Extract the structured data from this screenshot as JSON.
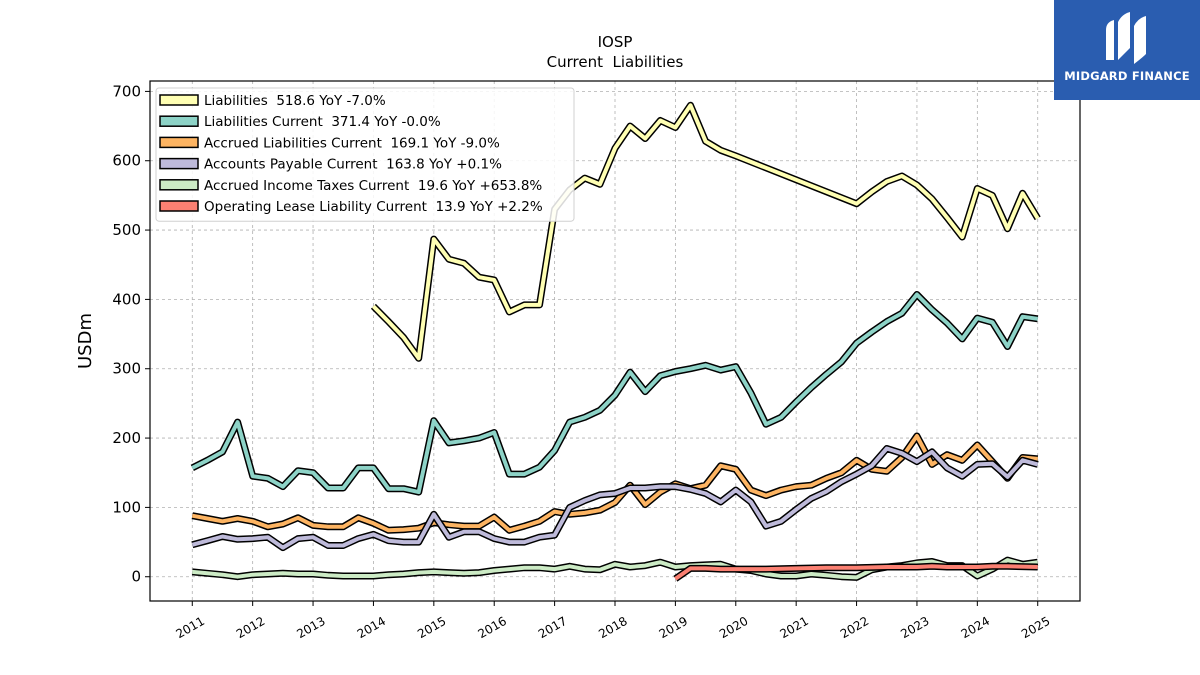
{
  "brand": {
    "name": "MIDGARD FINANCE",
    "bg": "#2a5db0"
  },
  "chart_data": {
    "type": "line",
    "title": "IOSP",
    "subtitle": "Current  Liabilities",
    "ylabel": "USDm",
    "xlabel": "",
    "ylim": [
      -35,
      715
    ],
    "xlim": [
      2010.3,
      2025.7
    ],
    "yticks": [
      0,
      100,
      200,
      300,
      400,
      500,
      600,
      700
    ],
    "xticks": [
      "2011",
      "2012",
      "2013",
      "2014",
      "2015",
      "2016",
      "2017",
      "2018",
      "2019",
      "2020",
      "2021",
      "2022",
      "2023",
      "2024",
      "2025"
    ],
    "grid": true,
    "legend_position": "top-left",
    "series": [
      {
        "name": "Liabilities  518.6 YoY -7.0%",
        "color": "#ffffb3",
        "points": [
          [
            2014.0,
            390
          ],
          [
            2014.25,
            368
          ],
          [
            2014.5,
            345
          ],
          [
            2014.75,
            315
          ],
          [
            2015.0,
            487
          ],
          [
            2015.25,
            458
          ],
          [
            2015.5,
            452
          ],
          [
            2015.75,
            432
          ],
          [
            2016.0,
            428
          ],
          [
            2016.25,
            382
          ],
          [
            2016.5,
            392
          ],
          [
            2016.75,
            392
          ],
          [
            2017.0,
            530
          ],
          [
            2017.25,
            558
          ],
          [
            2017.5,
            575
          ],
          [
            2017.75,
            566
          ],
          [
            2018.0,
            618
          ],
          [
            2018.25,
            650
          ],
          [
            2018.5,
            632
          ],
          [
            2018.75,
            658
          ],
          [
            2019.0,
            648
          ],
          [
            2019.25,
            680
          ],
          [
            2019.5,
            628
          ],
          [
            2019.75,
            615
          ],
          [
            2020.0,
            607
          ],
          [
            2022.0,
            538
          ],
          [
            2022.25,
            555
          ],
          [
            2022.5,
            570
          ],
          [
            2022.75,
            578
          ],
          [
            2023.0,
            565
          ],
          [
            2023.25,
            545
          ],
          [
            2023.5,
            518
          ],
          [
            2023.75,
            490
          ],
          [
            2024.0,
            560
          ],
          [
            2024.25,
            550
          ],
          [
            2024.5,
            502
          ],
          [
            2024.75,
            553
          ],
          [
            2025.0,
            517
          ]
        ]
      },
      {
        "name": "Liabilities Current  371.4 YoY -0.0%",
        "color": "#8dd3c7",
        "points": [
          [
            2011.0,
            157
          ],
          [
            2011.25,
            168
          ],
          [
            2011.5,
            180
          ],
          [
            2011.75,
            223
          ],
          [
            2012.0,
            145
          ],
          [
            2012.25,
            142
          ],
          [
            2012.5,
            130
          ],
          [
            2012.75,
            153
          ],
          [
            2013.0,
            150
          ],
          [
            2013.25,
            128
          ],
          [
            2013.5,
            128
          ],
          [
            2013.75,
            157
          ],
          [
            2014.0,
            157
          ],
          [
            2014.25,
            127
          ],
          [
            2014.5,
            127
          ],
          [
            2014.75,
            122
          ],
          [
            2015.0,
            225
          ],
          [
            2015.25,
            193
          ],
          [
            2015.5,
            196
          ],
          [
            2015.75,
            200
          ],
          [
            2016.0,
            208
          ],
          [
            2016.25,
            148
          ],
          [
            2016.5,
            148
          ],
          [
            2016.75,
            158
          ],
          [
            2017.0,
            182
          ],
          [
            2017.25,
            223
          ],
          [
            2017.5,
            230
          ],
          [
            2017.75,
            240
          ],
          [
            2018.0,
            262
          ],
          [
            2018.25,
            295
          ],
          [
            2018.5,
            267
          ],
          [
            2018.75,
            290
          ],
          [
            2019.0,
            296
          ],
          [
            2019.25,
            300
          ],
          [
            2019.5,
            305
          ],
          [
            2019.75,
            298
          ],
          [
            2020.0,
            303
          ],
          [
            2020.25,
            265
          ],
          [
            2020.5,
            220
          ],
          [
            2020.75,
            230
          ],
          [
            2021.0,
            252
          ],
          [
            2021.25,
            273
          ],
          [
            2021.5,
            292
          ],
          [
            2021.75,
            310
          ],
          [
            2022.0,
            337
          ],
          [
            2022.25,
            353
          ],
          [
            2022.5,
            368
          ],
          [
            2022.75,
            380
          ],
          [
            2023.0,
            407
          ],
          [
            2023.25,
            385
          ],
          [
            2023.5,
            366
          ],
          [
            2023.75,
            343
          ],
          [
            2024.0,
            373
          ],
          [
            2024.25,
            367
          ],
          [
            2024.5,
            332
          ],
          [
            2024.75,
            375
          ],
          [
            2025.0,
            372
          ]
        ]
      },
      {
        "name": "Accrued Liabilities Current  169.1 YoY -9.0%",
        "color": "#fdb462",
        "points": [
          [
            2011.0,
            88
          ],
          [
            2011.25,
            84
          ],
          [
            2011.5,
            80
          ],
          [
            2011.75,
            84
          ],
          [
            2012.0,
            80
          ],
          [
            2012.25,
            72
          ],
          [
            2012.5,
            76
          ],
          [
            2012.75,
            85
          ],
          [
            2013.0,
            74
          ],
          [
            2013.25,
            72
          ],
          [
            2013.5,
            72
          ],
          [
            2013.75,
            85
          ],
          [
            2014.0,
            77
          ],
          [
            2014.25,
            67
          ],
          [
            2014.5,
            68
          ],
          [
            2014.75,
            70
          ],
          [
            2015.0,
            78
          ],
          [
            2015.25,
            75
          ],
          [
            2015.5,
            73
          ],
          [
            2015.75,
            73
          ],
          [
            2016.0,
            86
          ],
          [
            2016.25,
            67
          ],
          [
            2016.5,
            73
          ],
          [
            2016.75,
            80
          ],
          [
            2017.0,
            94
          ],
          [
            2017.25,
            90
          ],
          [
            2017.5,
            92
          ],
          [
            2017.75,
            96
          ],
          [
            2018.0,
            107
          ],
          [
            2018.25,
            132
          ],
          [
            2018.5,
            104
          ],
          [
            2018.75,
            122
          ],
          [
            2019.0,
            134
          ],
          [
            2019.25,
            127
          ],
          [
            2019.5,
            132
          ],
          [
            2019.75,
            160
          ],
          [
            2020.0,
            155
          ],
          [
            2020.25,
            125
          ],
          [
            2020.5,
            117
          ],
          [
            2020.75,
            125
          ],
          [
            2021.0,
            130
          ],
          [
            2021.25,
            132
          ],
          [
            2021.5,
            142
          ],
          [
            2021.75,
            150
          ],
          [
            2022.0,
            168
          ],
          [
            2022.25,
            155
          ],
          [
            2022.5,
            152
          ],
          [
            2022.75,
            172
          ],
          [
            2023.0,
            203
          ],
          [
            2023.25,
            162
          ],
          [
            2023.5,
            176
          ],
          [
            2023.75,
            168
          ],
          [
            2024.0,
            190
          ],
          [
            2024.25,
            166
          ],
          [
            2024.5,
            142
          ],
          [
            2024.75,
            172
          ],
          [
            2025.0,
            170
          ]
        ]
      },
      {
        "name": "Accounts Payable Current  163.8 YoY +0.1%",
        "color": "#bebada",
        "points": [
          [
            2011.0,
            46
          ],
          [
            2011.25,
            52
          ],
          [
            2011.5,
            58
          ],
          [
            2011.75,
            54
          ],
          [
            2012.0,
            55
          ],
          [
            2012.25,
            57
          ],
          [
            2012.5,
            42
          ],
          [
            2012.75,
            55
          ],
          [
            2013.0,
            57
          ],
          [
            2013.25,
            45
          ],
          [
            2013.5,
            45
          ],
          [
            2013.75,
            55
          ],
          [
            2014.0,
            61
          ],
          [
            2014.25,
            52
          ],
          [
            2014.5,
            50
          ],
          [
            2014.75,
            50
          ],
          [
            2015.0,
            90
          ],
          [
            2015.25,
            57
          ],
          [
            2015.5,
            65
          ],
          [
            2015.75,
            65
          ],
          [
            2016.0,
            55
          ],
          [
            2016.25,
            50
          ],
          [
            2016.5,
            50
          ],
          [
            2016.75,
            57
          ],
          [
            2017.0,
            60
          ],
          [
            2017.25,
            100
          ],
          [
            2017.5,
            110
          ],
          [
            2017.75,
            118
          ],
          [
            2018.0,
            120
          ],
          [
            2018.25,
            128
          ],
          [
            2018.5,
            128
          ],
          [
            2018.75,
            130
          ],
          [
            2019.0,
            130
          ],
          [
            2019.25,
            126
          ],
          [
            2019.5,
            120
          ],
          [
            2019.75,
            108
          ],
          [
            2020.0,
            125
          ],
          [
            2020.25,
            108
          ],
          [
            2020.5,
            73
          ],
          [
            2020.75,
            80
          ],
          [
            2021.0,
            97
          ],
          [
            2021.25,
            113
          ],
          [
            2021.5,
            123
          ],
          [
            2021.75,
            137
          ],
          [
            2022.0,
            148
          ],
          [
            2022.25,
            160
          ],
          [
            2022.5,
            185
          ],
          [
            2022.75,
            178
          ],
          [
            2023.0,
            166
          ],
          [
            2023.25,
            180
          ],
          [
            2023.5,
            157
          ],
          [
            2023.75,
            145
          ],
          [
            2024.0,
            162
          ],
          [
            2024.25,
            163
          ],
          [
            2024.5,
            144
          ],
          [
            2024.75,
            168
          ],
          [
            2025.0,
            162
          ]
        ]
      },
      {
        "name": "Accrued Income Taxes Current  19.6 YoY +653.8%",
        "color": "#ccebc5",
        "points": [
          [
            2011.0,
            7
          ],
          [
            2011.25,
            5
          ],
          [
            2011.5,
            3
          ],
          [
            2011.75,
            0
          ],
          [
            2012.0,
            3
          ],
          [
            2012.25,
            4
          ],
          [
            2012.5,
            5
          ],
          [
            2012.75,
            4
          ],
          [
            2013.0,
            4
          ],
          [
            2013.25,
            2
          ],
          [
            2013.5,
            1
          ],
          [
            2013.75,
            1
          ],
          [
            2014.0,
            1
          ],
          [
            2014.25,
            3
          ],
          [
            2014.5,
            4
          ],
          [
            2014.75,
            6
          ],
          [
            2015.0,
            7
          ],
          [
            2015.25,
            6
          ],
          [
            2015.5,
            5
          ],
          [
            2015.75,
            6
          ],
          [
            2016.0,
            9
          ],
          [
            2016.25,
            11
          ],
          [
            2016.5,
            13
          ],
          [
            2016.75,
            13
          ],
          [
            2017.0,
            11
          ],
          [
            2017.25,
            15
          ],
          [
            2017.5,
            11
          ],
          [
            2017.75,
            10
          ],
          [
            2018.0,
            18
          ],
          [
            2018.25,
            14
          ],
          [
            2018.5,
            16
          ],
          [
            2018.75,
            21
          ],
          [
            2019.0,
            14
          ],
          [
            2019.25,
            16
          ],
          [
            2019.5,
            17
          ],
          [
            2019.75,
            18
          ],
          [
            2020.0,
            11
          ],
          [
            2020.25,
            9
          ],
          [
            2020.5,
            4
          ],
          [
            2020.75,
            1
          ],
          [
            2021.0,
            1
          ],
          [
            2021.25,
            4
          ],
          [
            2021.5,
            2
          ],
          [
            2021.75,
            0
          ],
          [
            2022.0,
            -1
          ],
          [
            2022.25,
            10
          ],
          [
            2022.5,
            14
          ],
          [
            2022.75,
            16
          ],
          [
            2023.0,
            20
          ],
          [
            2023.25,
            22
          ],
          [
            2023.5,
            16
          ],
          [
            2023.75,
            16
          ],
          [
            2024.0,
            1
          ],
          [
            2024.25,
            11
          ],
          [
            2024.5,
            24
          ],
          [
            2024.75,
            18
          ],
          [
            2025.0,
            21
          ]
        ]
      },
      {
        "name": "Operating Lease Liability Current  13.9 YoY +2.2%",
        "color": "#fb8072",
        "points": [
          [
            2019.0,
            -3
          ],
          [
            2019.25,
            12
          ],
          [
            2019.5,
            12
          ],
          [
            2019.75,
            11
          ],
          [
            2020.0,
            11
          ],
          [
            2020.5,
            11
          ],
          [
            2021.0,
            12
          ],
          [
            2021.5,
            13
          ],
          [
            2022.0,
            13
          ],
          [
            2022.5,
            14
          ],
          [
            2023.0,
            14
          ],
          [
            2023.25,
            15
          ],
          [
            2023.5,
            14
          ],
          [
            2024.0,
            14
          ],
          [
            2024.25,
            15
          ],
          [
            2024.5,
            15
          ],
          [
            2025.0,
            14
          ]
        ]
      }
    ]
  }
}
